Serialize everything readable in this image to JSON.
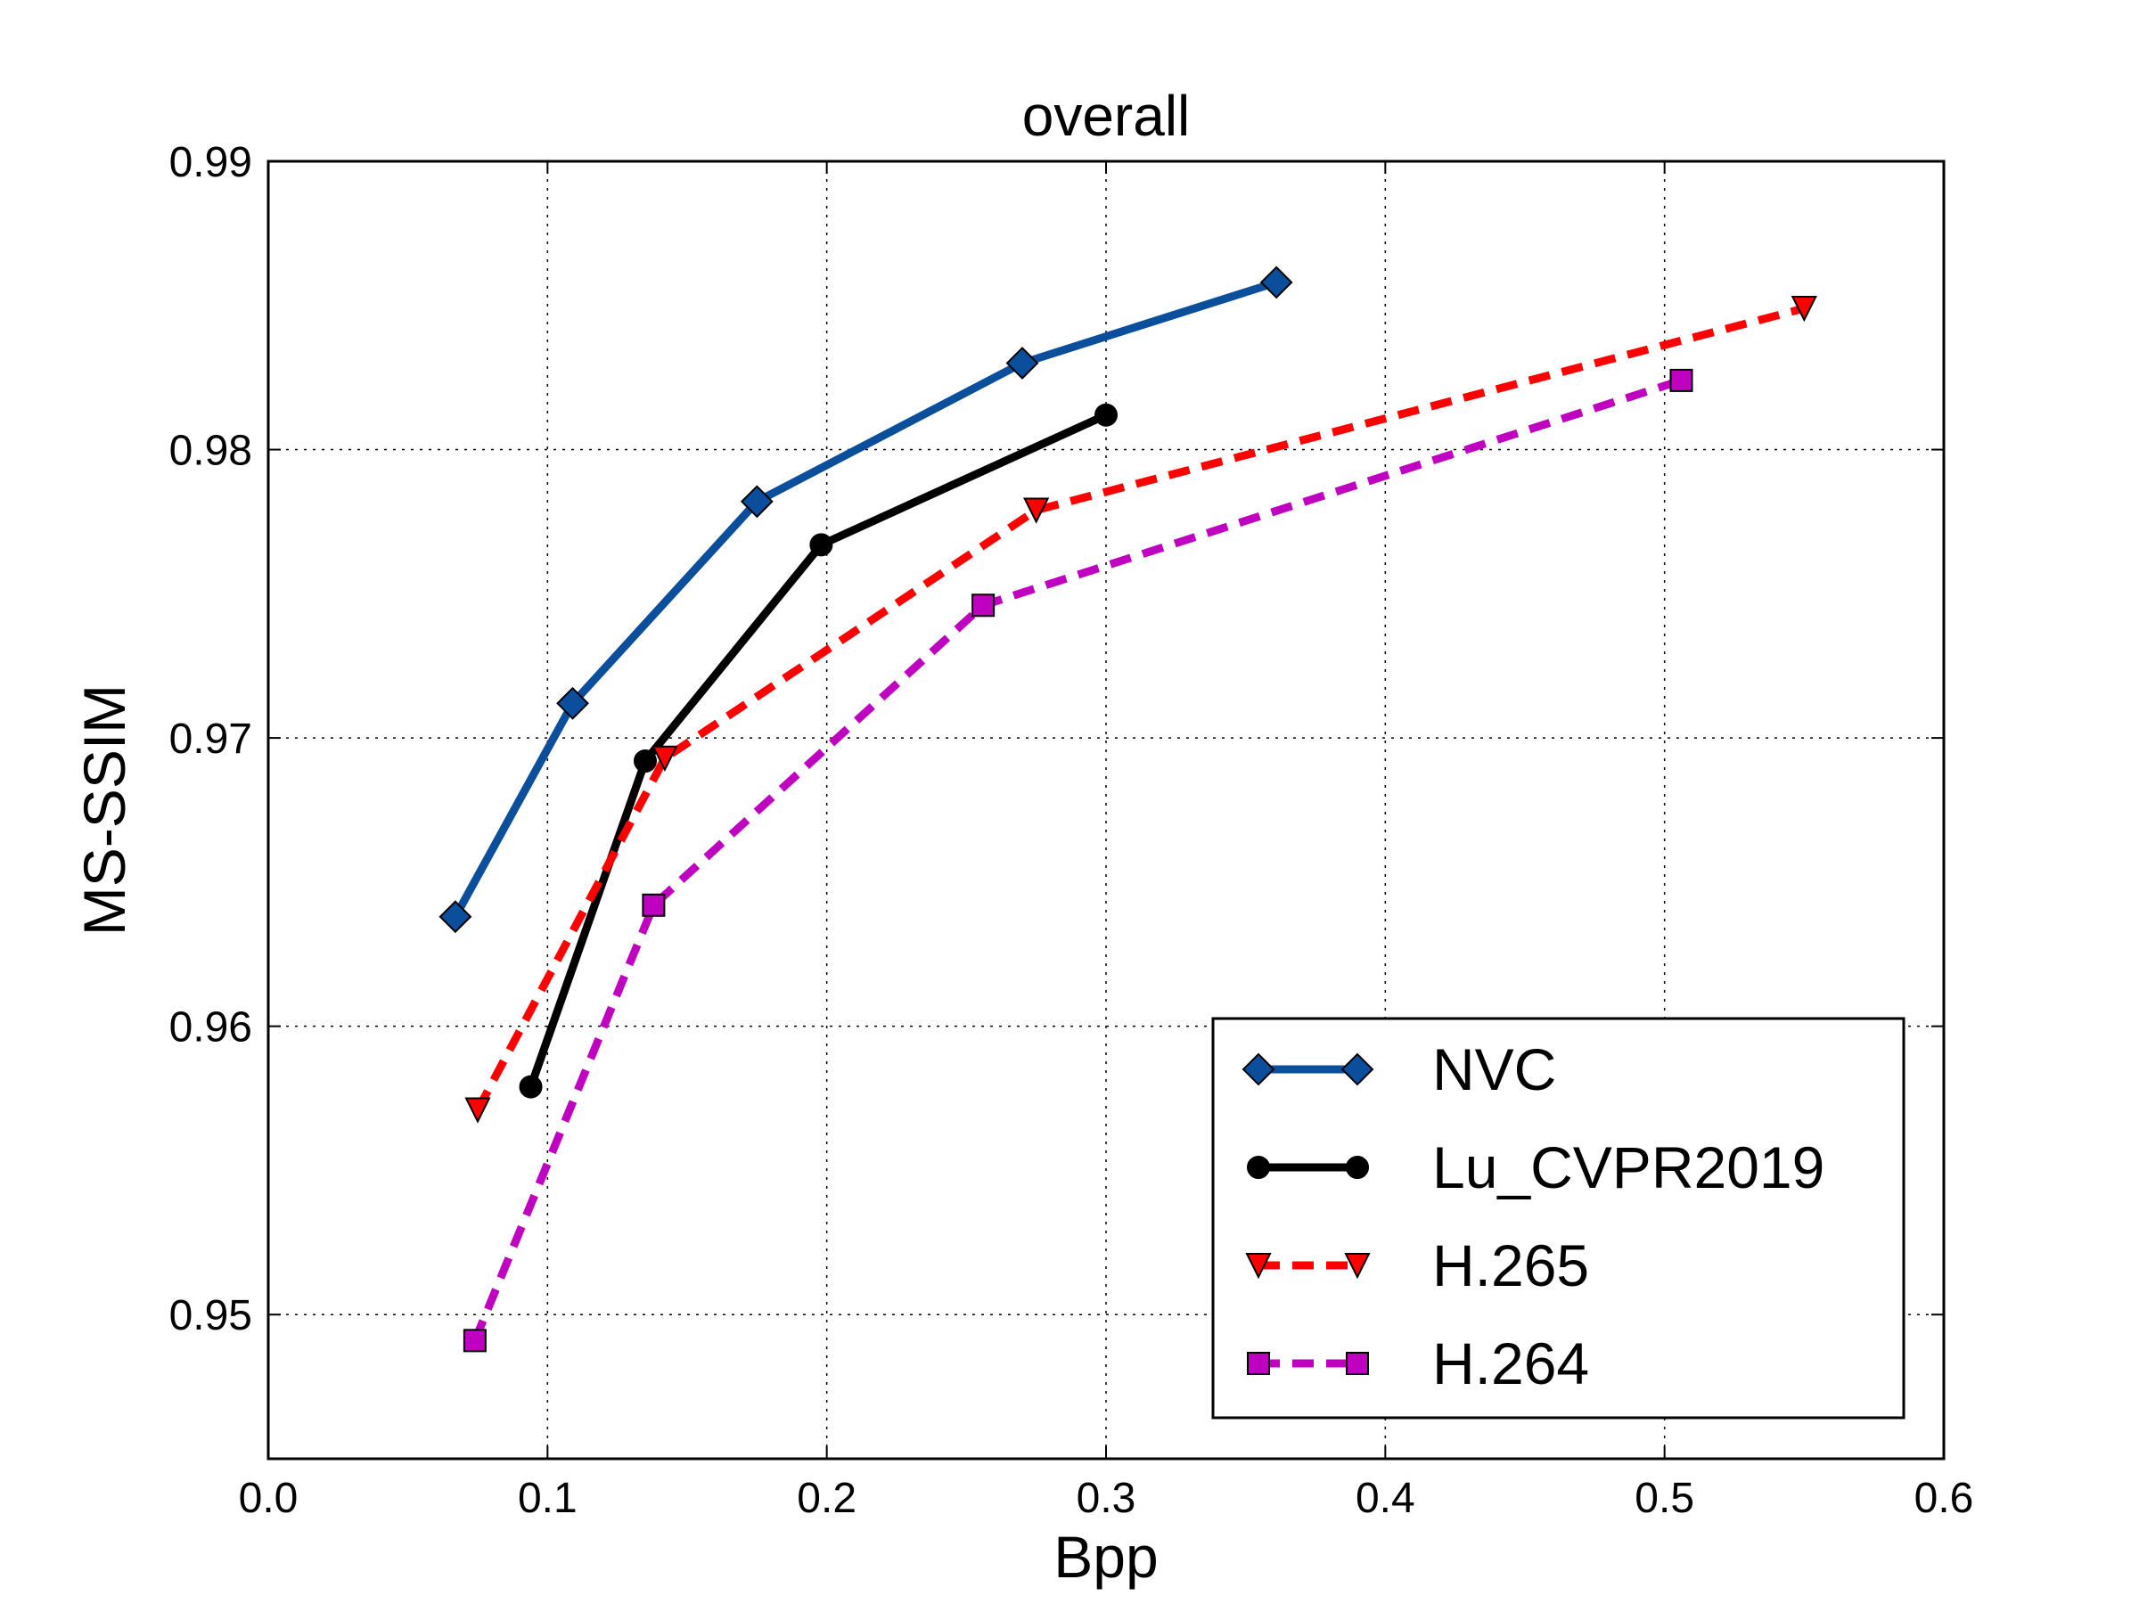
{
  "chart_data": {
    "type": "line",
    "title": "overall",
    "xlabel": "Bpp",
    "ylabel": "MS-SSIM",
    "xlim": [
      0.0,
      0.6
    ],
    "ylim": [
      0.945,
      0.99
    ],
    "xticks": [
      "0.0",
      "0.1",
      "0.2",
      "0.3",
      "0.4",
      "0.5",
      "0.6"
    ],
    "yticks": [
      "0.95",
      "0.96",
      "0.97",
      "0.98",
      "0.99"
    ],
    "grid": true,
    "legend_position": "lower-right",
    "series": [
      {
        "name": "NVC",
        "color": "#0b4f9c",
        "linestyle": "solid",
        "marker": "diamond",
        "x": [
          0.067,
          0.109,
          0.175,
          0.27,
          0.361
        ],
        "y": [
          0.9638,
          0.9712,
          0.9782,
          0.983,
          0.9858
        ]
      },
      {
        "name": "Lu_CVPR2019",
        "color": "#000000",
        "linestyle": "solid",
        "marker": "circle",
        "x": [
          0.094,
          0.135,
          0.198,
          0.3
        ],
        "y": [
          0.9579,
          0.9692,
          0.9767,
          0.9812
        ]
      },
      {
        "name": "H.265",
        "color": "#ff0000",
        "linestyle": "dashed",
        "marker": "triangle-down",
        "x": [
          0.075,
          0.142,
          0.275,
          0.55
        ],
        "y": [
          0.9571,
          0.9693,
          0.9779,
          0.9849
        ]
      },
      {
        "name": "H.264",
        "color": "#c000c0",
        "linestyle": "dashed",
        "marker": "square",
        "x": [
          0.074,
          0.138,
          0.256,
          0.506
        ],
        "y": [
          0.9491,
          0.9642,
          0.9746,
          0.9824
        ]
      }
    ]
  }
}
